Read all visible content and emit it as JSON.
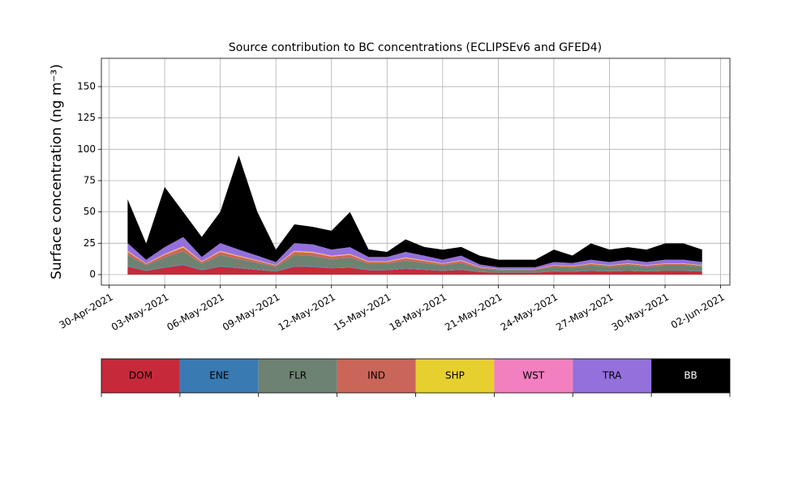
{
  "chart_data": {
    "type": "stacked_area",
    "title": "Source contribution to BC concentrations (ECLIPSEv6 and GFED4)",
    "y_label": "Surface concentration (ng m⁻³)",
    "x": [
      "2021-05-01",
      "2021-05-02",
      "2021-05-03",
      "2021-05-04",
      "2021-05-05",
      "2021-05-06",
      "2021-05-07",
      "2021-05-08",
      "2021-05-09",
      "2021-05-10",
      "2021-05-11",
      "2021-05-12",
      "2021-05-13",
      "2021-05-14",
      "2021-05-15",
      "2021-05-16",
      "2021-05-17",
      "2021-05-18",
      "2021-05-19",
      "2021-05-20",
      "2021-05-21",
      "2021-05-22",
      "2021-05-23",
      "2021-05-24",
      "2021-05-25",
      "2021-05-26",
      "2021-05-27",
      "2021-05-28",
      "2021-05-29",
      "2021-05-30",
      "2021-05-31",
      "2021-06-01"
    ],
    "series": [
      {
        "name": "DOM",
        "color": "#c62a3a",
        "values": [
          6.3,
          3,
          5.5,
          7.5,
          3.5,
          6.3,
          5,
          3.8,
          2.5,
          6.3,
          6,
          5,
          5.5,
          3.5,
          3.5,
          4.5,
          3.8,
          3,
          3.8,
          2,
          1.5,
          1.5,
          1.5,
          2.5,
          2.3,
          3,
          2.5,
          3,
          2.5,
          3,
          3,
          2.5
        ]
      },
      {
        "name": "ENE",
        "color": "#3a7ab2",
        "values": [
          0.5,
          0.2,
          0.4,
          0.6,
          0.3,
          0.5,
          0.4,
          0.3,
          0.2,
          0.5,
          0.5,
          0.4,
          0.4,
          0.3,
          0.3,
          0.4,
          0.3,
          0.2,
          0.3,
          0.2,
          0.1,
          0.1,
          0.1,
          0.2,
          0.2,
          0.2,
          0.2,
          0.2,
          0.2,
          0.2,
          0.2,
          0.2
        ]
      },
      {
        "name": "FLR",
        "color": "#6e8272",
        "values": [
          8.8,
          4.2,
          7.7,
          10.5,
          4.9,
          8.8,
          7,
          5.3,
          3.5,
          8.8,
          8.4,
          7,
          7.7,
          4.9,
          4.9,
          6.3,
          5.3,
          4.2,
          5.3,
          2.8,
          2.1,
          2.1,
          2.1,
          3.5,
          3.2,
          4.2,
          3.5,
          4.2,
          3.5,
          4.2,
          4.2,
          3.5
        ]
      },
      {
        "name": "IND",
        "color": "#c96659",
        "values": [
          2.5,
          1.2,
          2.2,
          3,
          1.4,
          2.5,
          2,
          1.5,
          1,
          2.5,
          2.4,
          2,
          2.2,
          1.4,
          1.4,
          1.8,
          1.5,
          1.2,
          1.5,
          0.8,
          0.6,
          0.6,
          0.6,
          1,
          0.9,
          1.2,
          1,
          1.2,
          1,
          1.2,
          1.2,
          1
        ]
      },
      {
        "name": "SHP",
        "color": "#e6d030",
        "values": [
          0.5,
          0.2,
          0.4,
          0.6,
          0.3,
          0.5,
          0.4,
          0.3,
          0.2,
          0.5,
          0.5,
          0.4,
          0.4,
          0.3,
          0.3,
          0.4,
          0.3,
          0.2,
          0.3,
          0.2,
          0.1,
          0.1,
          0.1,
          0.2,
          0.2,
          0.2,
          0.2,
          0.2,
          0.2,
          0.2,
          0.2,
          0.2
        ]
      },
      {
        "name": "WST",
        "color": "#f27fbf",
        "values": [
          0.5,
          0.2,
          0.4,
          0.6,
          0.3,
          0.5,
          0.4,
          0.3,
          0.2,
          0.5,
          0.5,
          0.4,
          0.4,
          0.3,
          0.3,
          0.4,
          0.3,
          0.2,
          0.3,
          0.2,
          0.1,
          0.1,
          0.1,
          0.2,
          0.2,
          0.2,
          0.2,
          0.2,
          0.2,
          0.2,
          0.2,
          0.2
        ]
      },
      {
        "name": "TRA",
        "color": "#9370db",
        "values": [
          6,
          2.9,
          5.3,
          7.2,
          3.4,
          6,
          4.8,
          3.6,
          2.4,
          6,
          5.8,
          4.8,
          5.3,
          3.4,
          3.4,
          4.3,
          3.6,
          2.9,
          3.6,
          1.9,
          1.4,
          1.4,
          1.4,
          2.4,
          2.2,
          2.9,
          2.4,
          2.9,
          2.4,
          2.9,
          2.9,
          2.4
        ]
      },
      {
        "name": "BB",
        "color": "#000000",
        "values": [
          35,
          13,
          48,
          20,
          16,
          25,
          75,
          35,
          10,
          15,
          14,
          15,
          28,
          6,
          4,
          10,
          7,
          8,
          7,
          7,
          6,
          6,
          6,
          10,
          6,
          13,
          10,
          10,
          10,
          13,
          13,
          10
        ]
      }
    ],
    "xlim": [
      "2021-04-29T14:00",
      "2021-06-02T12:00"
    ],
    "xticks": [
      {
        "value": "2021-04-30",
        "label": "30-Apr-2021"
      },
      {
        "value": "2021-05-03",
        "label": "03-May-2021"
      },
      {
        "value": "2021-05-06",
        "label": "06-May-2021"
      },
      {
        "value": "2021-05-09",
        "label": "09-May-2021"
      },
      {
        "value": "2021-05-12",
        "label": "12-May-2021"
      },
      {
        "value": "2021-05-15",
        "label": "15-May-2021"
      },
      {
        "value": "2021-05-18",
        "label": "18-May-2021"
      },
      {
        "value": "2021-05-21",
        "label": "21-May-2021"
      },
      {
        "value": "2021-05-24",
        "label": "24-May-2021"
      },
      {
        "value": "2021-05-27",
        "label": "27-May-2021"
      },
      {
        "value": "2021-05-30",
        "label": "30-May-2021"
      },
      {
        "value": "2021-06-02",
        "label": "02-Jun-2021"
      }
    ],
    "ylim": [
      -8.4,
      172.6
    ],
    "yticks": [
      0,
      25,
      50,
      75,
      100,
      125,
      150
    ],
    "grid": true
  }
}
